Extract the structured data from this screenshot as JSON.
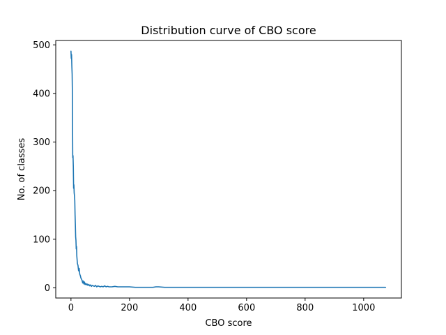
{
  "chart_data": {
    "type": "line",
    "title": "Distribution curve of CBO score",
    "xlabel": "CBO score",
    "ylabel": "No. of classes",
    "xlim": [
      -52,
      1129
    ],
    "ylim": [
      -21,
      509
    ],
    "xticks": [
      0,
      200,
      400,
      600,
      800,
      1000
    ],
    "yticks": [
      0,
      100,
      200,
      300,
      400,
      500
    ],
    "grid": false,
    "legend": "none",
    "series": [
      {
        "color": "#1f77b4",
        "x": [
          0,
          1,
          2,
          3,
          4,
          5,
          6,
          7,
          8,
          9,
          10,
          11,
          12,
          13,
          14,
          15,
          16,
          17,
          18,
          19,
          20,
          22,
          24,
          26,
          28,
          30,
          32,
          34,
          36,
          38,
          40,
          42,
          44,
          46,
          48,
          50,
          52,
          55,
          58,
          61,
          64,
          67,
          70,
          73,
          76,
          80,
          84,
          88,
          92,
          96,
          100,
          105,
          110,
          115,
          120,
          125,
          130,
          140,
          150,
          160,
          170,
          180,
          190,
          200,
          220,
          250,
          280,
          290,
          300,
          320,
          350,
          400,
          500,
          600,
          700,
          800,
          900,
          1000,
          1075
        ],
        "y": [
          487,
          472,
          480,
          456,
          440,
          395,
          268,
          272,
          250,
          205,
          212,
          195,
          190,
          180,
          150,
          130,
          105,
          98,
          80,
          85,
          65,
          50,
          46,
          35,
          40,
          28,
          25,
          20,
          18,
          15,
          10,
          14,
          8,
          12,
          7,
          9,
          6,
          8,
          5,
          7,
          4,
          6,
          3,
          5,
          4,
          3,
          5,
          2,
          4,
          3,
          2,
          3,
          2,
          4,
          2,
          3,
          2,
          2,
          3,
          2,
          2,
          2,
          2,
          2,
          1,
          1,
          1,
          2,
          2,
          1,
          1,
          1,
          1,
          1,
          1,
          1,
          1,
          1,
          1
        ]
      }
    ]
  }
}
